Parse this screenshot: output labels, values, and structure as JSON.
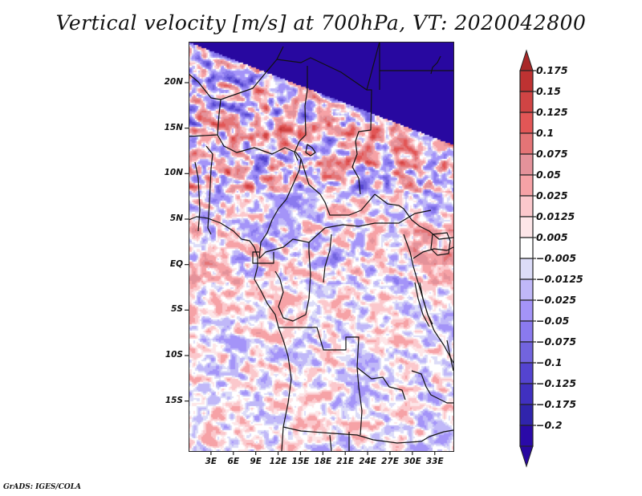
{
  "title": "Vertical velocity [m/s] at 700hPa, VT: 2020042800",
  "footer": "GrADS: IGES/COLA",
  "chart_data": {
    "type": "heatmap",
    "title": "Vertical velocity [m/s] at 700hPa, VT: 2020042800",
    "variable": "Vertical velocity",
    "units": "m/s",
    "level": "700hPa",
    "valid_time": "2020042800",
    "projection": "lat-lon",
    "lon_range_deg": [
      0,
      35.5
    ],
    "lat_range_deg": [
      -20.5,
      24.5
    ],
    "x_ticks": [
      "3E",
      "6E",
      "9E",
      "12E",
      "15E",
      "18E",
      "21E",
      "24E",
      "27E",
      "30E",
      "33E"
    ],
    "x_tick_values": [
      3,
      6,
      9,
      12,
      15,
      18,
      21,
      24,
      27,
      30,
      33
    ],
    "y_ticks": [
      "20N",
      "15N",
      "10N",
      "5N",
      "EQ",
      "5S",
      "10S",
      "15S"
    ],
    "y_tick_values": [
      20,
      15,
      10,
      5,
      0,
      -5,
      -10,
      -15
    ],
    "colorbar": {
      "orientation": "vertical",
      "placement": "right",
      "extend": "both",
      "labels": [
        "0.175",
        "0.15",
        "0.125",
        "0.1",
        "0.075",
        "0.05",
        "0.025",
        "0.0125",
        "0.005",
        "-0.005",
        "-0.0125",
        "-0.025",
        "-0.05",
        "-0.075",
        "-0.1",
        "-0.125",
        "-0.175",
        "-0.2"
      ],
      "levels": [
        0.175,
        0.15,
        0.125,
        0.1,
        0.075,
        0.05,
        0.025,
        0.0125,
        0.005,
        -0.005,
        -0.0125,
        -0.025,
        -0.05,
        -0.075,
        -0.1,
        -0.125,
        -0.175,
        -0.2
      ],
      "colors_top_to_bottom": [
        "#a82828",
        "#be3232",
        "#d04444",
        "#e25656",
        "#e47476",
        "#e4929a",
        "#f6a2a6",
        "#fbc8cc",
        "#fde6e8",
        "#ffffff",
        "#dcdcf8",
        "#c0b8f8",
        "#a494f8",
        "#8a7aee",
        "#7264de",
        "#5444d0",
        "#4030c0",
        "#3024ac",
        "#2a0aa8",
        "#2808a0"
      ]
    },
    "field_description": "Mixed positive (red) and negative (blue) vertical velocity over central/west Africa; strongest red bands over Niger/Chad (10-20N) and around Lake Victoria; blue streaks across Sahara and Sahel; weaker alternating values over Gulf of Guinea and Angola/Zambia",
    "overlays": [
      "country borders",
      "coastlines",
      "lakes"
    ]
  }
}
